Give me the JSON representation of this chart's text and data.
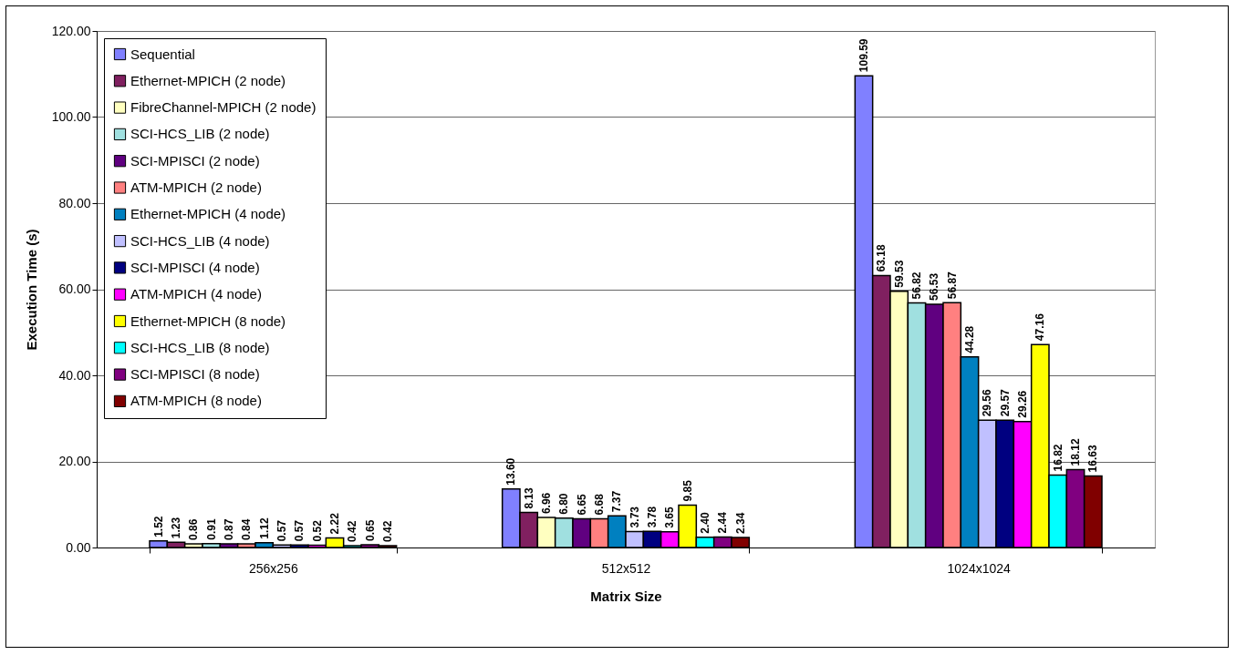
{
  "chart_data": {
    "type": "bar",
    "xlabel": "Matrix Size",
    "ylabel": "Execution Time (s)",
    "categories": [
      "256x256",
      "512x512",
      "1024x1024"
    ],
    "ylim": [
      0,
      120
    ],
    "yticks": [
      {
        "value": 0,
        "label": "0.00"
      },
      {
        "value": 20,
        "label": "20.00"
      },
      {
        "value": 40,
        "label": "40.00"
      },
      {
        "value": 60,
        "label": "60.00"
      },
      {
        "value": 80,
        "label": "80.00"
      },
      {
        "value": 100,
        "label": "100.00"
      },
      {
        "value": 120,
        "label": "120.00"
      }
    ],
    "grid": "y",
    "legend": "top left",
    "series": [
      {
        "name": "Sequential",
        "color": "#8080ff",
        "values": [
          1.52,
          13.6,
          109.59
        ],
        "value_labels": [
          "1.52",
          "13.60",
          "109.59"
        ]
      },
      {
        "name": "Ethernet-MPICH (2 node)",
        "color": "#802060",
        "values": [
          1.23,
          8.13,
          63.18
        ],
        "value_labels": [
          "1.23",
          "8.13",
          "63.18"
        ]
      },
      {
        "name": "FibreChannel-MPICH (2 node)",
        "color": "#ffffc0",
        "values": [
          0.86,
          6.96,
          59.53
        ],
        "value_labels": [
          "0.86",
          "6.96",
          "59.53"
        ]
      },
      {
        "name": "SCI-HCS_LIB (2 node)",
        "color": "#a0e0e0",
        "values": [
          0.91,
          6.8,
          56.82
        ],
        "value_labels": [
          "0.91",
          "6.80",
          "56.82"
        ]
      },
      {
        "name": "SCI-MPISCI (2 node)",
        "color": "#600080",
        "values": [
          0.87,
          6.65,
          56.53
        ],
        "value_labels": [
          "0.87",
          "6.65",
          "56.53"
        ]
      },
      {
        "name": "ATM-MPICH (2 node)",
        "color": "#ff8080",
        "values": [
          0.84,
          6.68,
          56.87
        ],
        "value_labels": [
          "0.84",
          "6.68",
          "56.87"
        ]
      },
      {
        "name": "Ethernet-MPICH (4 node)",
        "color": "#0080c0",
        "values": [
          1.12,
          7.37,
          44.28
        ],
        "value_labels": [
          "1.12",
          "7.37",
          "44.28"
        ]
      },
      {
        "name": "SCI-HCS_LIB (4 node)",
        "color": "#c0c0ff",
        "values": [
          0.57,
          3.73,
          29.56
        ],
        "value_labels": [
          "0.57",
          "3.73",
          "29.56"
        ]
      },
      {
        "name": "SCI-MPISCI (4 node)",
        "color": "#000080",
        "values": [
          0.57,
          3.78,
          29.57
        ],
        "value_labels": [
          "0.57",
          "3.78",
          "29.57"
        ]
      },
      {
        "name": "ATM-MPICH (4 node)",
        "color": "#ff00ff",
        "values": [
          0.52,
          3.65,
          29.26
        ],
        "value_labels": [
          "0.52",
          "3.65",
          "29.26"
        ]
      },
      {
        "name": "Ethernet-MPICH (8 node)",
        "color": "#ffff00",
        "values": [
          2.22,
          9.85,
          47.16
        ],
        "value_labels": [
          "2.22",
          "9.85",
          "47.16"
        ]
      },
      {
        "name": "SCI-HCS_LIB (8 node)",
        "color": "#00ffff",
        "values": [
          0.42,
          2.4,
          16.82
        ],
        "value_labels": [
          "0.42",
          "2.40",
          "16.82"
        ]
      },
      {
        "name": "SCI-MPISCI (8 node)",
        "color": "#800080",
        "values": [
          0.65,
          2.44,
          18.12
        ],
        "value_labels": [
          "0.65",
          "2.44",
          "18.12"
        ]
      },
      {
        "name": "ATM-MPICH (8 node)",
        "color": "#800000",
        "values": [
          0.42,
          2.34,
          16.63
        ],
        "value_labels": [
          "0.42",
          "2.34",
          "16.63"
        ]
      }
    ]
  }
}
